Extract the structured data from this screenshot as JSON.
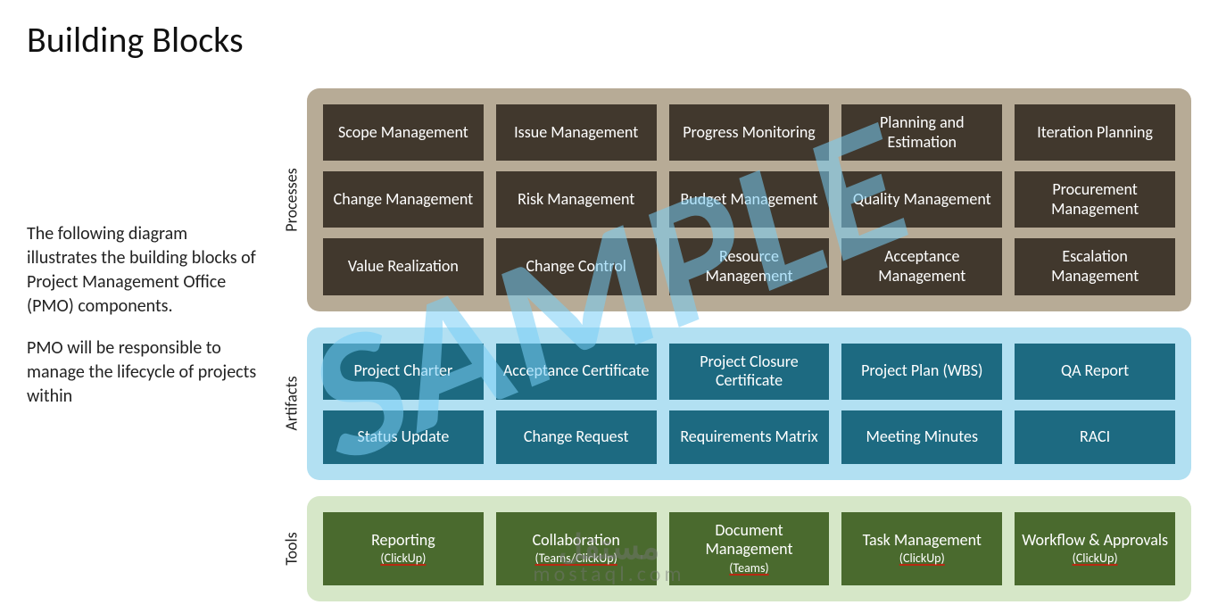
{
  "title": "Building Blocks",
  "description": {
    "p1": "The following diagram illustrates the building blocks of Project Management Office (PMO) components.",
    "p2": "PMO will be responsible to manage the lifecycle of projects within"
  },
  "watermark": {
    "sample": "SAMPLE",
    "brand_ar": "مستقل",
    "brand_en": "mostaql.com"
  },
  "sections": {
    "processes": {
      "label": "Processes",
      "panel_bg": "#b7ab96",
      "block_bg": "#41382d",
      "block_fg": "#ffffff",
      "min_height": 62,
      "items": [
        {
          "main": "Scope Management"
        },
        {
          "main": "Issue Management"
        },
        {
          "main": "Progress Monitoring"
        },
        {
          "main": "Planning and Estimation"
        },
        {
          "main": "Iteration Planning"
        },
        {
          "main": "Change Management"
        },
        {
          "main": "Risk Management"
        },
        {
          "main": "Budget Management"
        },
        {
          "main": "Quality Management"
        },
        {
          "main": "Procurement Management"
        },
        {
          "main": "Value Realization"
        },
        {
          "main": "Change Control"
        },
        {
          "main": "Resource Management"
        },
        {
          "main": "Acceptance Management"
        },
        {
          "main": "Escalation Management"
        }
      ]
    },
    "artifacts": {
      "label": "Artifacts",
      "panel_bg": "#b2e0f2",
      "block_bg": "#1d6a81",
      "block_fg": "#ffffff",
      "min_height": 60,
      "items": [
        {
          "main": "Project Charter"
        },
        {
          "main": "Acceptance Certificate"
        },
        {
          "main": "Project Closure Certificate"
        },
        {
          "main": "Project Plan (WBS)"
        },
        {
          "main": "QA Report"
        },
        {
          "main": "Status Update"
        },
        {
          "main": "Change Request"
        },
        {
          "main": "Requirements Matrix"
        },
        {
          "main": "Meeting Minutes"
        },
        {
          "main": "RACI"
        }
      ]
    },
    "tools": {
      "label": "Tools",
      "panel_bg": "#d6e7c8",
      "block_bg": "#4a6a2e",
      "block_fg": "#ffffff",
      "min_height": 56,
      "items": [
        {
          "main": "Reporting",
          "sub": "(ClickUp)"
        },
        {
          "main": "Collaboration",
          "sub": "(Teams/ClickUp)"
        },
        {
          "main": "Document Management",
          "sub": "(Teams)"
        },
        {
          "main": "Task Management",
          "sub": "(ClickUp)"
        },
        {
          "main": "Workflow & Approvals",
          "sub": "(ClickUp)"
        }
      ]
    }
  }
}
